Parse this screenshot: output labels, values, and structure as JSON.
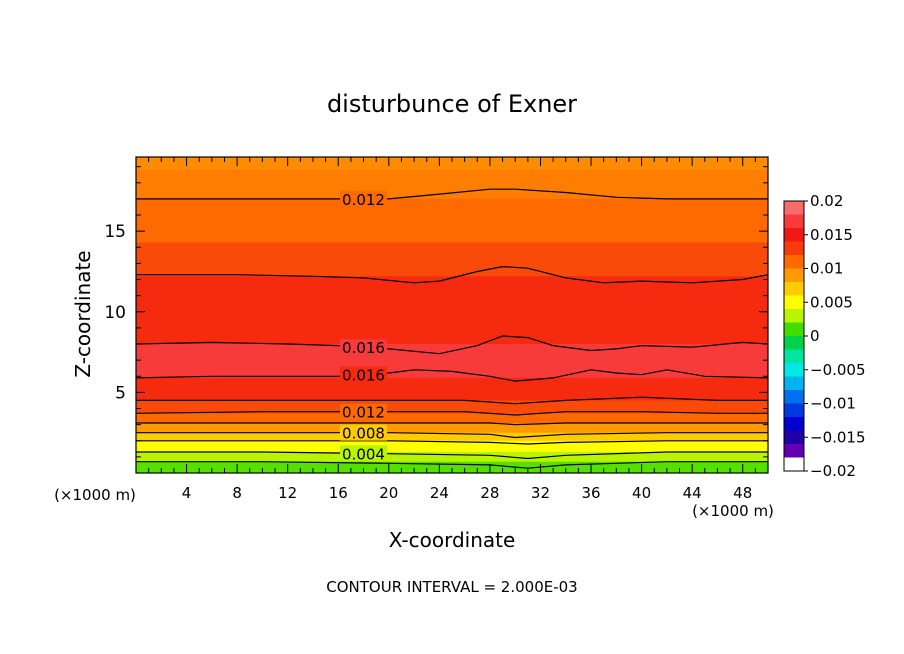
{
  "chart_data": {
    "type": "contour",
    "title": "disturbunce of Exner",
    "xlabel": "X-coordinate",
    "ylabel": "Z-coordinate",
    "x_units": "(×1000 m)",
    "x_units_right": "(×1000 m)",
    "footer": "CONTOUR INTERVAL = 2.000E-03",
    "xlim": [
      0,
      50
    ],
    "ylim": [
      0,
      19.6
    ],
    "x_ticks": [
      "4",
      "8",
      "12",
      "16",
      "20",
      "24",
      "28",
      "32",
      "36",
      "40",
      "44",
      "48"
    ],
    "y_ticks": [
      "5",
      "10",
      "15"
    ],
    "colorbar": {
      "ticks": [
        "0.02",
        "0.015",
        "0.01",
        "0.005",
        "0",
        "-0.005",
        "-0.01",
        "-0.015",
        "-0.02"
      ],
      "range": [
        -0.02,
        0.02
      ],
      "levels": [
        {
          "lo": 0.018,
          "color": "#f76b6b"
        },
        {
          "lo": 0.016,
          "color": "#f73b3b"
        },
        {
          "lo": 0.014,
          "color": "#ef1a14"
        },
        {
          "lo": 0.012,
          "color": "#f93a0a"
        },
        {
          "lo": 0.01,
          "color": "#ff6a00"
        },
        {
          "lo": 0.008,
          "color": "#ff9a00"
        },
        {
          "lo": 0.006,
          "color": "#ffcc00"
        },
        {
          "lo": 0.004,
          "color": "#ffff00"
        },
        {
          "lo": 0.002,
          "color": "#b9f400"
        },
        {
          "lo": 0.0,
          "color": "#40dd00"
        },
        {
          "lo": -0.002,
          "color": "#00d24a"
        },
        {
          "lo": -0.004,
          "color": "#00e6a0"
        },
        {
          "lo": -0.006,
          "color": "#00e8e8"
        },
        {
          "lo": -0.008,
          "color": "#00b4f0"
        },
        {
          "lo": -0.01,
          "color": "#0070f0"
        },
        {
          "lo": -0.012,
          "color": "#0038e0"
        },
        {
          "lo": -0.014,
          "color": "#0000d0"
        },
        {
          "lo": -0.016,
          "color": "#2000a8"
        },
        {
          "lo": -0.018,
          "color": "#6000b0"
        }
      ]
    },
    "bands": [
      {
        "z_top": 19.6,
        "color": "#ff8c00"
      },
      {
        "z_top": 18.8,
        "color": "#ff7d00"
      },
      {
        "z_top": 17.0,
        "color": "#ff6a00"
      },
      {
        "z_top": 14.3,
        "color": "#f94a0a"
      },
      {
        "z_top": 12.2,
        "color": "#f52a0f"
      },
      {
        "z_top": 8.0,
        "color": "#f73b3b"
      },
      {
        "z_top": 5.9,
        "color": "#f52a0f"
      },
      {
        "z_top": 4.5,
        "color": "#f94a0a"
      },
      {
        "z_top": 3.7,
        "color": "#ff6a00"
      },
      {
        "z_top": 3.1,
        "color": "#ff9a00"
      },
      {
        "z_top": 2.5,
        "color": "#ffcc00"
      },
      {
        "z_top": 2.0,
        "color": "#ffff00"
      },
      {
        "z_top": 1.3,
        "color": "#b9f400"
      },
      {
        "z_top": 0.7,
        "color": "#55e000"
      }
    ],
    "contours": [
      {
        "label": "0.012",
        "label_x": 18,
        "points": [
          [
            0,
            17.0
          ],
          [
            8,
            17.0
          ],
          [
            16,
            17.0
          ],
          [
            20,
            17.0
          ],
          [
            24,
            17.3
          ],
          [
            28,
            17.6
          ],
          [
            30,
            17.6
          ],
          [
            34,
            17.4
          ],
          [
            38,
            17.1
          ],
          [
            42,
            17.0
          ],
          [
            46,
            17.0
          ],
          [
            50,
            17.0
          ]
        ]
      },
      {
        "label": "",
        "label_x": null,
        "points": [
          [
            0,
            12.3
          ],
          [
            8,
            12.3
          ],
          [
            14,
            12.2
          ],
          [
            18,
            12.1
          ],
          [
            22,
            11.8
          ],
          [
            24,
            11.9
          ],
          [
            27,
            12.5
          ],
          [
            29,
            12.8
          ],
          [
            31,
            12.7
          ],
          [
            34,
            12.1
          ],
          [
            37,
            11.8
          ],
          [
            40,
            11.9
          ],
          [
            44,
            11.8
          ],
          [
            48,
            12.0
          ],
          [
            50,
            12.3
          ]
        ]
      },
      {
        "label": "0.016",
        "label_x": 18,
        "points": [
          [
            0,
            8.0
          ],
          [
            6,
            8.1
          ],
          [
            12,
            8.0
          ],
          [
            16,
            7.9
          ],
          [
            20,
            7.7
          ],
          [
            24,
            7.4
          ],
          [
            27,
            7.9
          ],
          [
            29,
            8.5
          ],
          [
            31,
            8.4
          ],
          [
            33,
            7.9
          ],
          [
            36,
            7.6
          ],
          [
            38,
            7.7
          ],
          [
            40,
            7.9
          ],
          [
            44,
            7.8
          ],
          [
            48,
            8.1
          ],
          [
            50,
            8.0
          ]
        ]
      },
      {
        "label": "0.016",
        "label_x": 18,
        "points": [
          [
            0,
            5.9
          ],
          [
            6,
            6.0
          ],
          [
            12,
            6.0
          ],
          [
            16,
            6.0
          ],
          [
            20,
            6.2
          ],
          [
            22,
            6.4
          ],
          [
            25,
            6.3
          ],
          [
            28,
            6.0
          ],
          [
            30,
            5.7
          ],
          [
            33,
            5.9
          ],
          [
            36,
            6.4
          ],
          [
            38,
            6.2
          ],
          [
            40,
            6.1
          ],
          [
            42,
            6.4
          ],
          [
            45,
            6.0
          ],
          [
            50,
            5.9
          ]
        ]
      },
      {
        "label": "",
        "label_x": null,
        "points": [
          [
            0,
            4.5
          ],
          [
            10,
            4.5
          ],
          [
            20,
            4.5
          ],
          [
            26,
            4.5
          ],
          [
            30,
            4.3
          ],
          [
            34,
            4.5
          ],
          [
            40,
            4.7
          ],
          [
            46,
            4.5
          ],
          [
            50,
            4.5
          ]
        ]
      },
      {
        "label": "0.012",
        "label_x": 18,
        "points": [
          [
            0,
            3.7
          ],
          [
            10,
            3.8
          ],
          [
            20,
            3.8
          ],
          [
            26,
            3.8
          ],
          [
            30,
            3.6
          ],
          [
            34,
            3.8
          ],
          [
            40,
            3.8
          ],
          [
            46,
            3.7
          ],
          [
            50,
            3.7
          ]
        ]
      },
      {
        "label": "",
        "label_x": null,
        "points": [
          [
            0,
            3.1
          ],
          [
            10,
            3.1
          ],
          [
            20,
            3.1
          ],
          [
            28,
            3.1
          ],
          [
            30,
            3.0
          ],
          [
            34,
            3.1
          ],
          [
            42,
            3.1
          ],
          [
            50,
            3.1
          ]
        ]
      },
      {
        "label": "0.008",
        "label_x": 18,
        "points": [
          [
            0,
            2.5
          ],
          [
            10,
            2.5
          ],
          [
            20,
            2.5
          ],
          [
            28,
            2.4
          ],
          [
            30,
            2.2
          ],
          [
            34,
            2.4
          ],
          [
            42,
            2.5
          ],
          [
            50,
            2.5
          ]
        ]
      },
      {
        "label": "",
        "label_x": null,
        "points": [
          [
            0,
            2.0
          ],
          [
            10,
            2.0
          ],
          [
            20,
            2.0
          ],
          [
            28,
            1.9
          ],
          [
            31,
            1.8
          ],
          [
            34,
            1.9
          ],
          [
            42,
            2.0
          ],
          [
            50,
            2.0
          ]
        ]
      },
      {
        "label": "0.004",
        "label_x": 18,
        "points": [
          [
            0,
            1.3
          ],
          [
            10,
            1.3
          ],
          [
            20,
            1.2
          ],
          [
            28,
            1.1
          ],
          [
            31,
            0.9
          ],
          [
            34,
            1.1
          ],
          [
            42,
            1.3
          ],
          [
            50,
            1.3
          ]
        ]
      },
      {
        "label": "",
        "label_x": null,
        "points": [
          [
            0,
            0.7
          ],
          [
            10,
            0.7
          ],
          [
            20,
            0.6
          ],
          [
            28,
            0.5
          ],
          [
            31,
            0.3
          ],
          [
            34,
            0.5
          ],
          [
            42,
            0.7
          ],
          [
            50,
            0.7
          ]
        ]
      }
    ]
  }
}
